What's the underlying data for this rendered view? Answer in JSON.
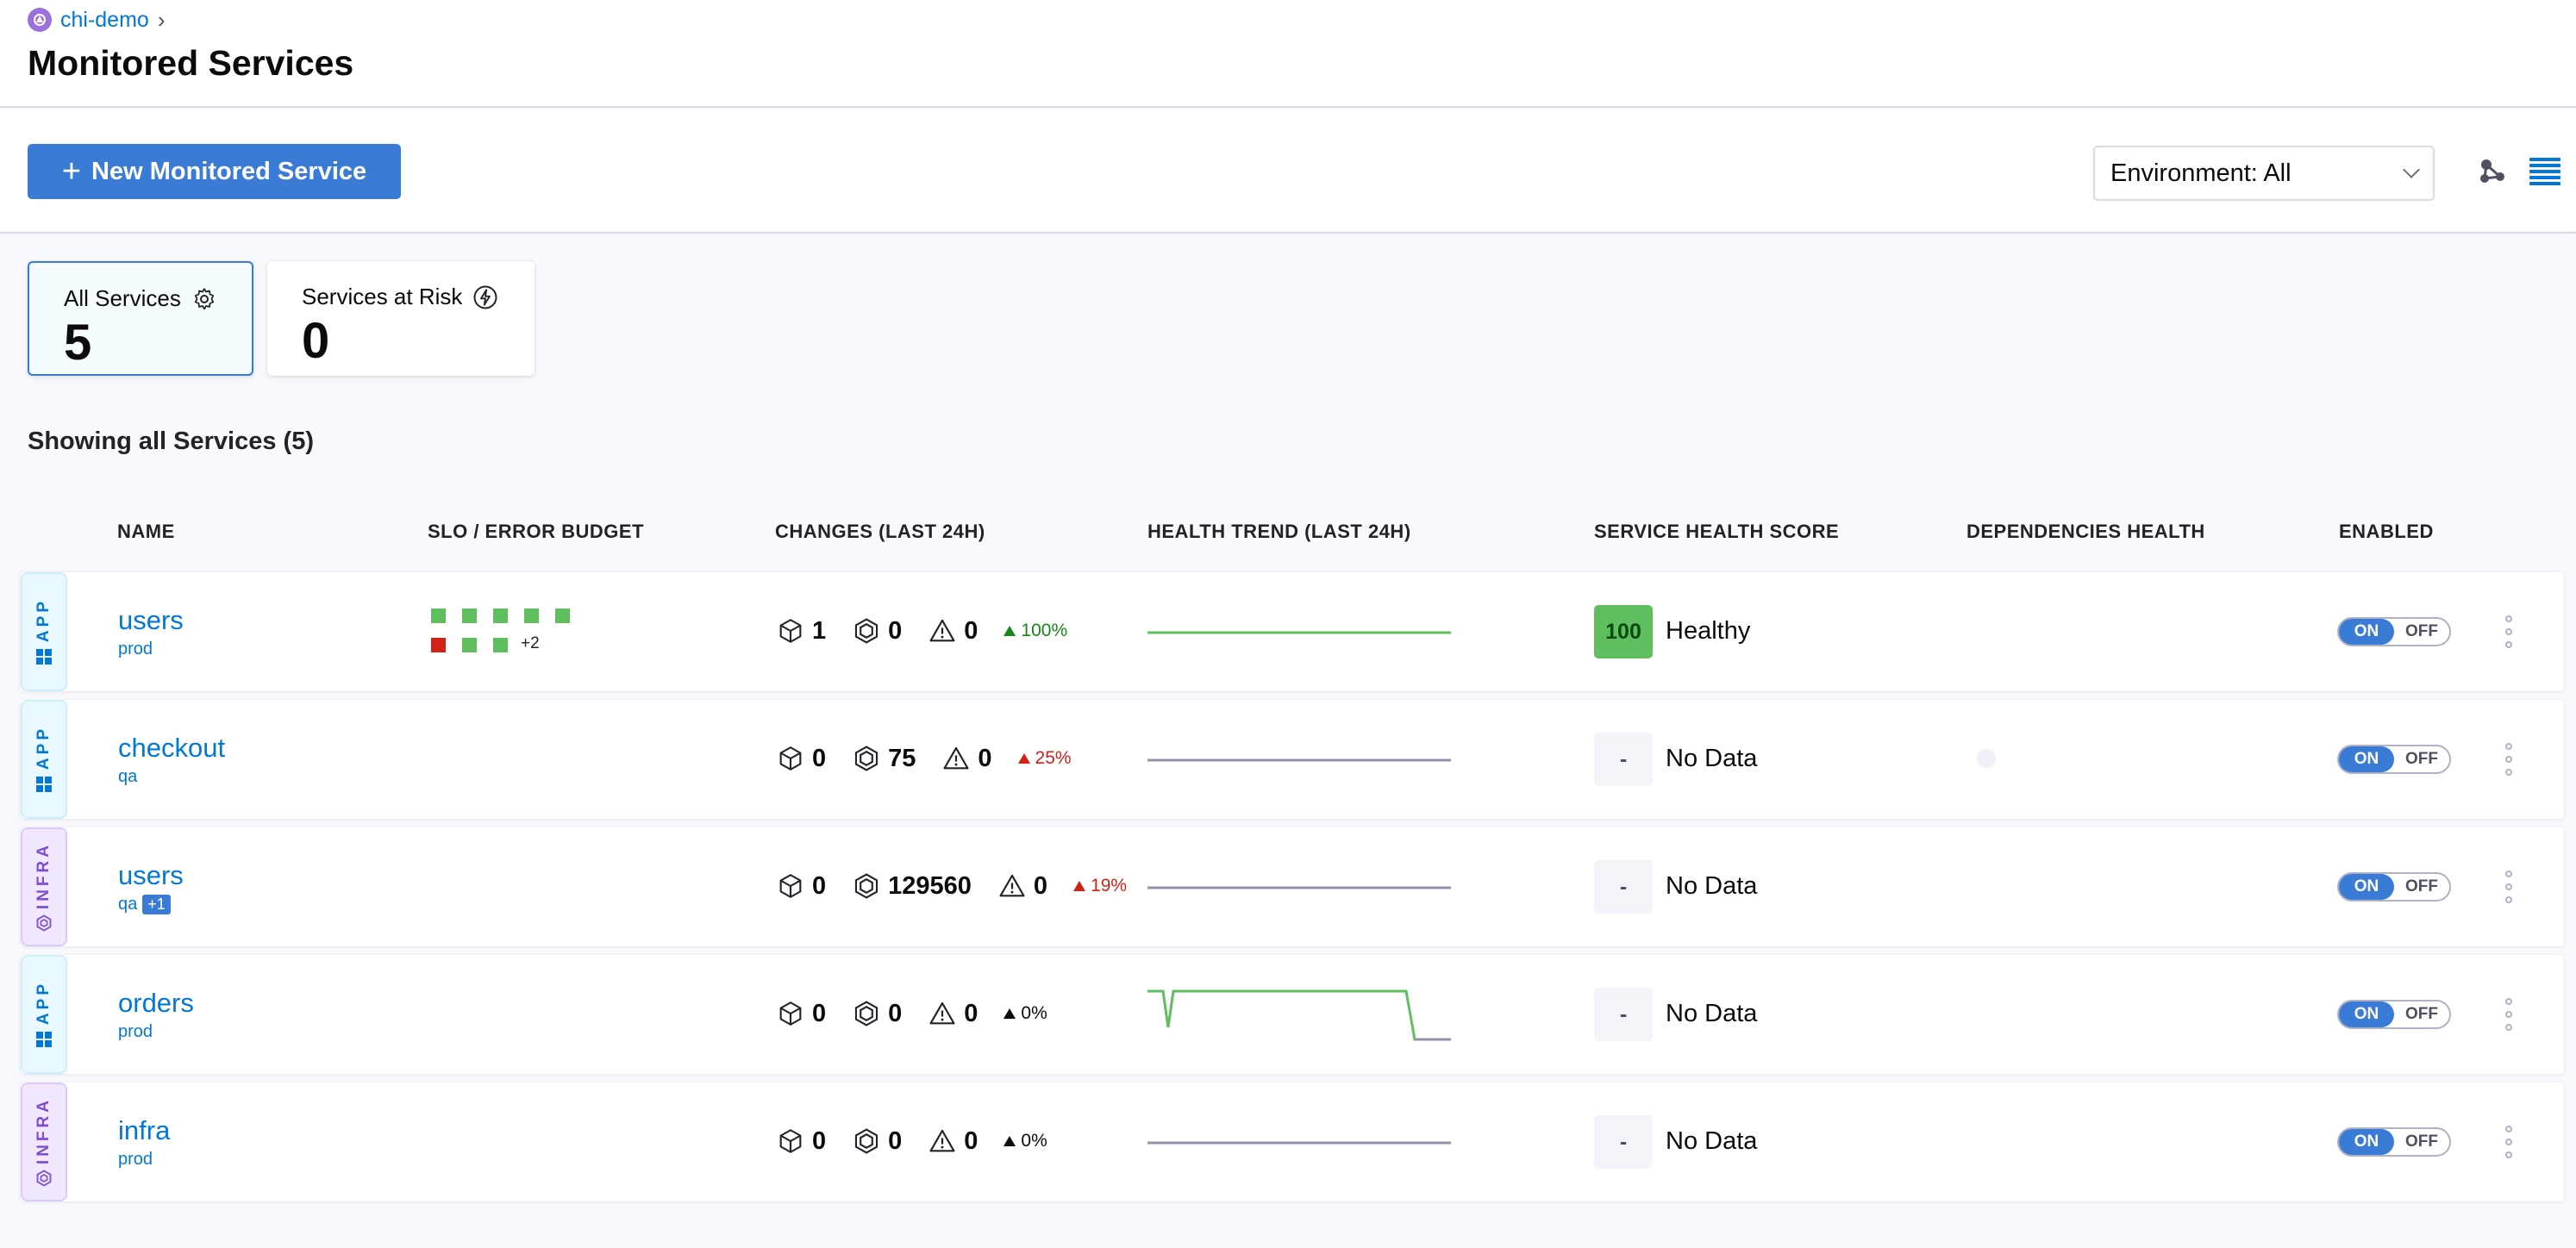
{
  "breadcrumb": {
    "project": "chi-demo"
  },
  "page": {
    "title": "Monitored Services"
  },
  "toolbar": {
    "new_service_label": "New Monitored Service",
    "environment_filter": "Environment: All"
  },
  "summary_cards": [
    {
      "label": "All Services",
      "count": "5",
      "icon": "gear-icon"
    },
    {
      "label": "Services at Risk",
      "count": "0",
      "icon": "lightning-icon"
    }
  ],
  "listing": {
    "showing_text": "Showing all Services (5)"
  },
  "table": {
    "headers": {
      "name": "NAME",
      "slo": "SLO / ERROR BUDGET",
      "changes": "CHANGES (LAST 24H)",
      "trend": "HEALTH TREND (LAST 24H)",
      "score": "SERVICE HEALTH SCORE",
      "deps": "DEPENDENCIES HEALTH",
      "enabled": "ENABLED"
    },
    "rows": [
      {
        "type": "APP",
        "name": "users",
        "env": "prod",
        "env_extra": "",
        "deployments": "1",
        "infra_changes": "0",
        "incidents": "0",
        "change_pct": "100%",
        "score": "100",
        "health": "Healthy",
        "on": "ON",
        "off": "OFF"
      },
      {
        "type": "APP",
        "name": "checkout",
        "env": "qa",
        "env_extra": "",
        "deployments": "0",
        "infra_changes": "75",
        "incidents": "0",
        "change_pct": "25%",
        "score": "-",
        "health": "No Data",
        "on": "ON",
        "off": "OFF"
      },
      {
        "type": "INFRA",
        "name": "users",
        "env": "qa",
        "env_extra": "+1",
        "deployments": "0",
        "infra_changes": "129560",
        "incidents": "0",
        "change_pct": "19%",
        "score": "-",
        "health": "No Data",
        "on": "ON",
        "off": "OFF"
      },
      {
        "type": "APP",
        "name": "orders",
        "env": "prod",
        "env_extra": "",
        "deployments": "0",
        "infra_changes": "0",
        "incidents": "0",
        "change_pct": "0%",
        "score": "-",
        "health": "No Data",
        "on": "ON",
        "off": "OFF"
      },
      {
        "type": "INFRA",
        "name": "infra",
        "env": "prod",
        "env_extra": "",
        "deployments": "0",
        "infra_changes": "0",
        "incidents": "0",
        "change_pct": "0%",
        "score": "-",
        "health": "No Data",
        "on": "ON",
        "off": "OFF"
      }
    ]
  },
  "slo_budget": {
    "first_row_more": "+2"
  },
  "colors": {
    "accent": "#3a7bd5",
    "healthy": "#5fbf5f",
    "slo_good": "#5fbf5f",
    "slo_bad": "#cf2318",
    "trend_ok": "#5fbf5f",
    "trend_none": "#9293ab"
  }
}
